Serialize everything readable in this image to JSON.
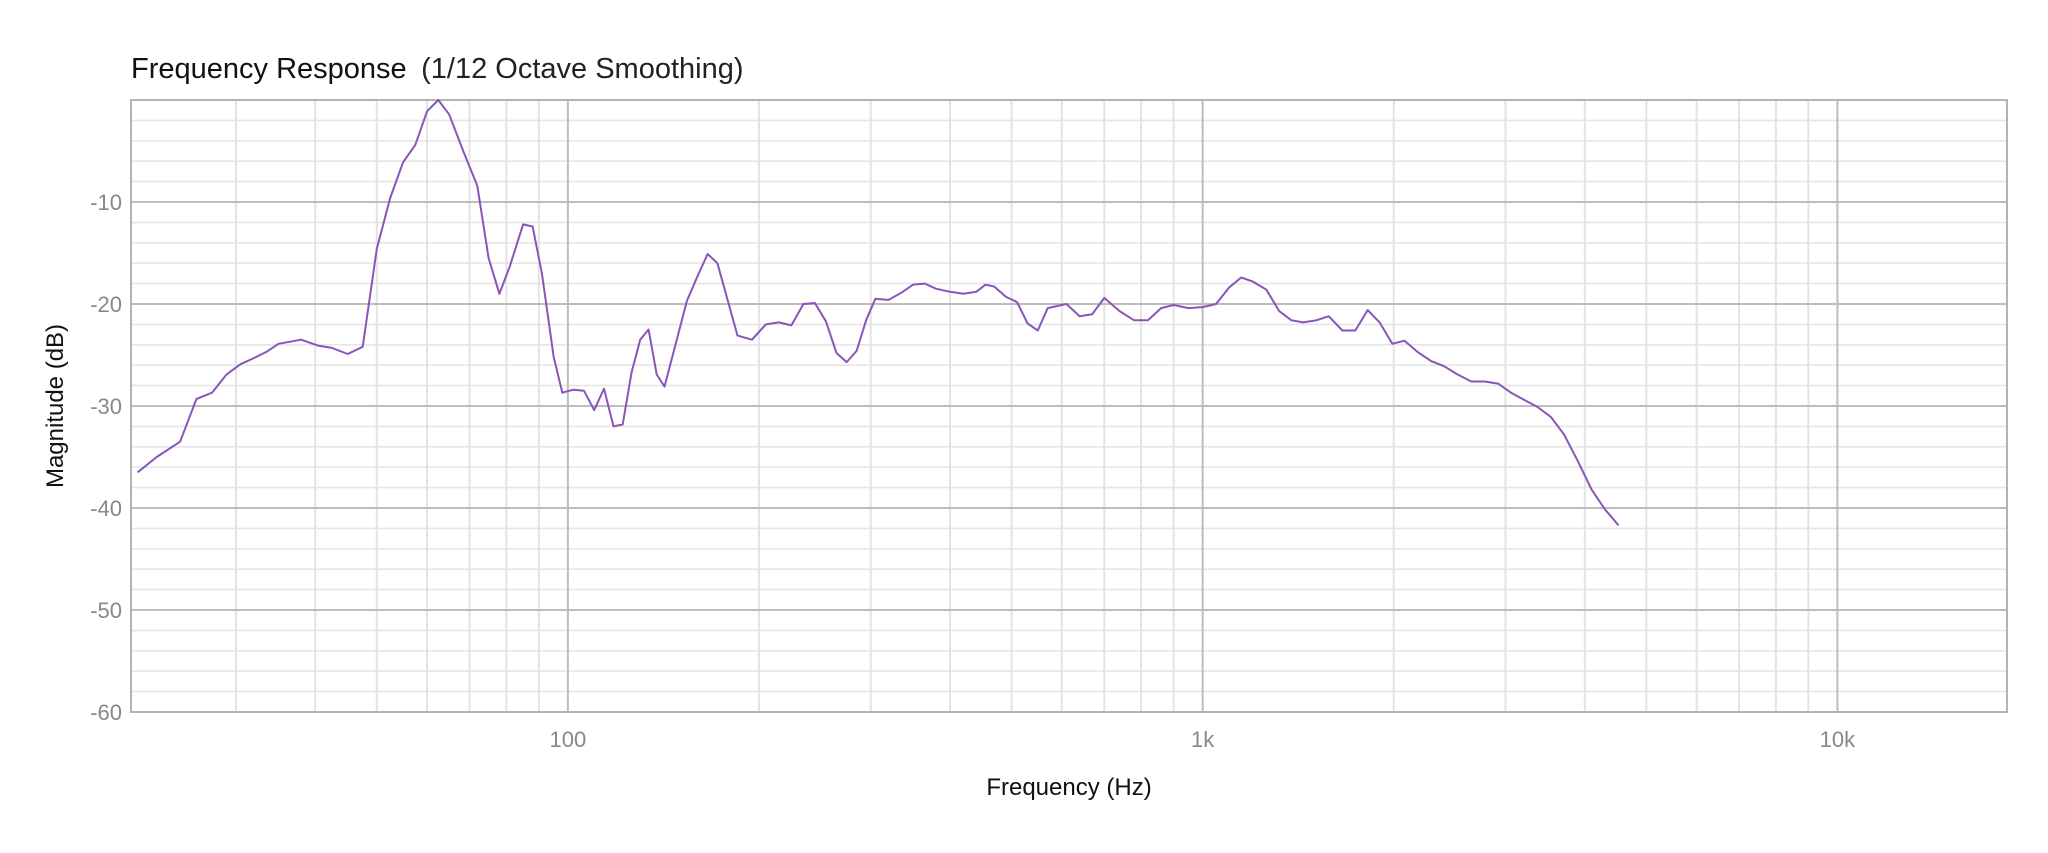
{
  "chart_data": {
    "type": "line",
    "title": "Frequency Response",
    "subtitle": "(1/12 Octave Smoothing)",
    "xlabel": "Frequency (Hz)",
    "ylabel": "Magnitude (dB)",
    "x_scale": "log",
    "xlim": [
      20.5,
      18500
    ],
    "ylim": [
      -60,
      0
    ],
    "x_ticks": [
      {
        "value": 100,
        "label": "100"
      },
      {
        "value": 1000,
        "label": "1k"
      },
      {
        "value": 10000,
        "label": "10k"
      }
    ],
    "y_ticks": [
      {
        "value": -10,
        "label": "-10"
      },
      {
        "value": -20,
        "label": "-20"
      },
      {
        "value": -30,
        "label": "-30"
      },
      {
        "value": -40,
        "label": "-40"
      },
      {
        "value": -50,
        "label": "-50"
      },
      {
        "value": -60,
        "label": "-60"
      }
    ],
    "grid": true,
    "series": [
      {
        "color": "#8a55b8",
        "points": [
          [
            21,
            -36.5
          ],
          [
            22.5,
            -35
          ],
          [
            24.5,
            -33.5
          ],
          [
            26,
            -29.3
          ],
          [
            27.5,
            -28.7
          ],
          [
            29,
            -26.9
          ],
          [
            30.5,
            -25.9
          ],
          [
            32,
            -25.3
          ],
          [
            33.5,
            -24.7
          ],
          [
            35,
            -23.9
          ],
          [
            38,
            -23.5
          ],
          [
            40.5,
            -24.1
          ],
          [
            42.5,
            -24.3
          ],
          [
            45,
            -24.9
          ],
          [
            47.5,
            -24.2
          ],
          [
            50,
            -14.6
          ],
          [
            52.5,
            -9.6
          ],
          [
            55,
            -6.1
          ],
          [
            57.5,
            -4.4
          ],
          [
            60,
            -1.1
          ],
          [
            62.5,
            0
          ],
          [
            65,
            -1.4
          ],
          [
            68.5,
            -5.1
          ],
          [
            72,
            -8.4
          ],
          [
            75,
            -15.5
          ],
          [
            78,
            -19
          ],
          [
            81,
            -16.3
          ],
          [
            85,
            -12.2
          ],
          [
            88,
            -12.4
          ],
          [
            91,
            -17
          ],
          [
            95,
            -25.2
          ],
          [
            98,
            -28.7
          ],
          [
            102,
            -28.4
          ],
          [
            106,
            -28.5
          ],
          [
            110,
            -30.4
          ],
          [
            114,
            -28.3
          ],
          [
            118,
            -32
          ],
          [
            122,
            -31.8
          ],
          [
            126,
            -26.7
          ],
          [
            130,
            -23.5
          ],
          [
            134,
            -22.5
          ],
          [
            138,
            -26.9
          ],
          [
            142,
            -28.1
          ],
          [
            148,
            -23.8
          ],
          [
            154,
            -19.7
          ],
          [
            160,
            -17.3
          ],
          [
            166,
            -15.1
          ],
          [
            172,
            -16
          ],
          [
            185,
            -23.1
          ],
          [
            195,
            -23.5
          ],
          [
            205,
            -22
          ],
          [
            215,
            -21.8
          ],
          [
            225,
            -22.1
          ],
          [
            235,
            -20
          ],
          [
            245,
            -19.9
          ],
          [
            255,
            -21.7
          ],
          [
            265,
            -24.8
          ],
          [
            275,
            -25.7
          ],
          [
            285,
            -24.6
          ],
          [
            295,
            -21.6
          ],
          [
            305,
            -19.5
          ],
          [
            320,
            -19.6
          ],
          [
            335,
            -18.9
          ],
          [
            350,
            -18.1
          ],
          [
            365,
            -18
          ],
          [
            380,
            -18.5
          ],
          [
            400,
            -18.8
          ],
          [
            420,
            -19
          ],
          [
            440,
            -18.8
          ],
          [
            455,
            -18.1
          ],
          [
            470,
            -18.3
          ],
          [
            490,
            -19.3
          ],
          [
            510,
            -19.8
          ],
          [
            530,
            -21.9
          ],
          [
            550,
            -22.6
          ],
          [
            570,
            -20.4
          ],
          [
            590,
            -20.2
          ],
          [
            610,
            -20
          ],
          [
            640,
            -21.2
          ],
          [
            670,
            -21
          ],
          [
            700,
            -19.4
          ],
          [
            740,
            -20.7
          ],
          [
            780,
            -21.6
          ],
          [
            820,
            -21.6
          ],
          [
            860,
            -20.4
          ],
          [
            900,
            -20.1
          ],
          [
            950,
            -20.4
          ],
          [
            1000,
            -20.3
          ],
          [
            1050,
            -20
          ],
          [
            1100,
            -18.4
          ],
          [
            1150,
            -17.4
          ],
          [
            1200,
            -17.8
          ],
          [
            1260,
            -18.6
          ],
          [
            1320,
            -20.7
          ],
          [
            1380,
            -21.6
          ],
          [
            1440,
            -21.8
          ],
          [
            1510,
            -21.6
          ],
          [
            1580,
            -21.2
          ],
          [
            1660,
            -22.6
          ],
          [
            1740,
            -22.6
          ],
          [
            1820,
            -20.6
          ],
          [
            1900,
            -21.8
          ],
          [
            1990,
            -23.9
          ],
          [
            2080,
            -23.6
          ],
          [
            2180,
            -24.7
          ],
          [
            2290,
            -25.6
          ],
          [
            2400,
            -26.1
          ],
          [
            2520,
            -26.9
          ],
          [
            2650,
            -27.6
          ],
          [
            2780,
            -27.6
          ],
          [
            2920,
            -27.8
          ],
          [
            3060,
            -28.7
          ],
          [
            3210,
            -29.4
          ],
          [
            3370,
            -30.1
          ],
          [
            3540,
            -31.1
          ],
          [
            3710,
            -32.8
          ],
          [
            3900,
            -35.4
          ],
          [
            4100,
            -38.2
          ],
          [
            4300,
            -40.1
          ],
          [
            4520,
            -41.7
          ]
        ]
      }
    ]
  }
}
